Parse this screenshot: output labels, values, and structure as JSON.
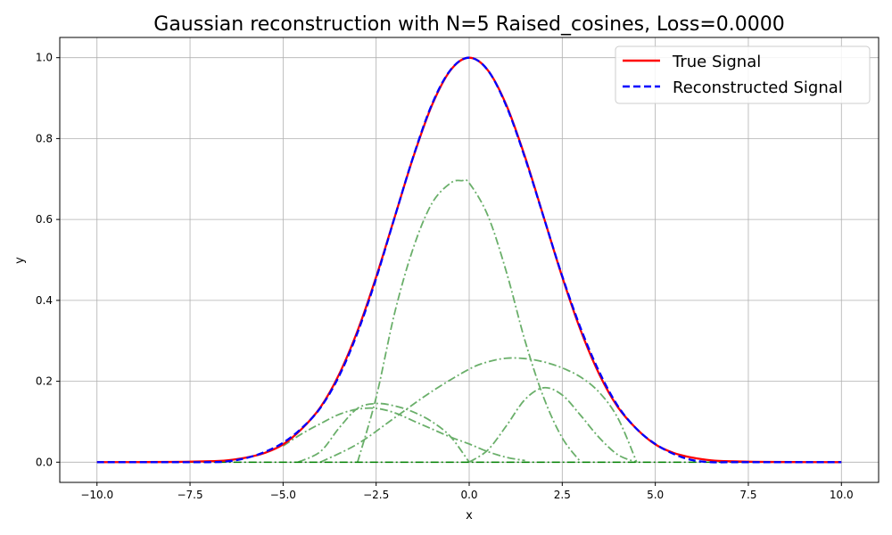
{
  "chart_data": {
    "type": "line",
    "title": "Gaussian reconstruction with N=5 Raised_cosines, Loss=0.0000",
    "xlabel": "x",
    "ylabel": "y",
    "xlim": [
      -11,
      11
    ],
    "ylim": [
      -0.05,
      1.05
    ],
    "xticks": [
      -10.0,
      -7.5,
      -5.0,
      -2.5,
      0.0,
      2.5,
      5.0,
      7.5,
      10.0
    ],
    "xtick_labels": [
      "−10.0",
      "−7.5",
      "−5.0",
      "−2.5",
      "0.0",
      "2.5",
      "5.0",
      "7.5",
      "10.0"
    ],
    "yticks": [
      0.0,
      0.2,
      0.4,
      0.6,
      0.8,
      1.0
    ],
    "ytick_labels": [
      "0.0",
      "0.2",
      "0.4",
      "0.6",
      "0.8",
      "1.0"
    ],
    "grid": true,
    "legend_position": "top-right",
    "series": [
      {
        "name": "True Signal",
        "color": "#ff0000",
        "style": "solid",
        "x": [
          -10,
          -9,
          -8,
          -7,
          -6.5,
          -6,
          -5.5,
          -5,
          -4.5,
          -4,
          -3.5,
          -3,
          -2.5,
          -2,
          -1.5,
          -1,
          -0.5,
          0,
          0.5,
          1,
          1.5,
          2,
          2.5,
          3,
          3.5,
          4,
          4.5,
          5,
          5.5,
          6,
          6.5,
          7,
          8,
          9,
          10
        ],
        "y": [
          0.0,
          0.0002,
          0.0006,
          0.0022,
          0.0046,
          0.0111,
          0.0226,
          0.0439,
          0.0821,
          0.1353,
          0.2163,
          0.3247,
          0.4578,
          0.6065,
          0.7548,
          0.8825,
          0.9692,
          1.0,
          0.9692,
          0.8825,
          0.7548,
          0.6065,
          0.4578,
          0.3247,
          0.2163,
          0.1353,
          0.0821,
          0.0439,
          0.0226,
          0.0111,
          0.0046,
          0.0022,
          0.0006,
          0.0002,
          0.0
        ]
      },
      {
        "name": "Reconstructed Signal",
        "color": "#0000ff",
        "style": "dashed",
        "x": [
          -10,
          -9,
          -8,
          -7,
          -6.5,
          -6,
          -5.5,
          -5,
          -4.5,
          -4,
          -3.5,
          -3,
          -2.5,
          -2,
          -1.5,
          -1,
          -0.5,
          0,
          0.5,
          1,
          1.5,
          2,
          2.5,
          3,
          3.5,
          4,
          4.5,
          5,
          5.5,
          6,
          6.5,
          7,
          8,
          9,
          10
        ],
        "y": [
          0.0,
          0.0,
          0.0,
          0.0,
          0.002,
          0.01,
          0.025,
          0.048,
          0.084,
          0.134,
          0.212,
          0.32,
          0.454,
          0.606,
          0.756,
          0.885,
          0.97,
          1.0,
          0.969,
          0.88,
          0.752,
          0.606,
          0.46,
          0.33,
          0.222,
          0.138,
          0.082,
          0.045,
          0.02,
          0.005,
          0.0,
          0.0,
          0.0,
          0.0,
          0.0
        ]
      }
    ],
    "components": {
      "color": "#6aaf6a",
      "style": "dash-dot",
      "baseline_color": "#008000",
      "items": [
        {
          "x": [
            -5,
            -4.5,
            -4,
            -3.5,
            -3,
            -2.5,
            -2,
            -1.5,
            -1,
            -0.5,
            0,
            0.5,
            1,
            1.5
          ],
          "y": [
            0.04,
            0.07,
            0.095,
            0.118,
            0.131,
            0.133,
            0.122,
            0.102,
            0.082,
            0.062,
            0.045,
            0.026,
            0.012,
            0.004
          ]
        },
        {
          "x": [
            -4.6,
            -4,
            -3.5,
            -3,
            -2.5,
            -2,
            -1.5,
            -1,
            -0.5,
            0
          ],
          "y": [
            0.0,
            0.026,
            0.084,
            0.133,
            0.145,
            0.139,
            0.124,
            0.1,
            0.063,
            0.0
          ]
        },
        {
          "x": [
            -3.0,
            -2.5,
            -2,
            -1.5,
            -1,
            -0.5,
            -0.2,
            0,
            0.5,
            1,
            1.5,
            2,
            2.5,
            3.0
          ],
          "y": [
            0.0,
            0.16,
            0.37,
            0.53,
            0.64,
            0.69,
            0.696,
            0.69,
            0.61,
            0.47,
            0.3,
            0.16,
            0.06,
            0.0
          ]
        },
        {
          "x": [
            -4,
            -3,
            -2,
            -1,
            0,
            0.5,
            1,
            1.5,
            2,
            2.5,
            3,
            3.5,
            4,
            4.5
          ],
          "y": [
            0.0,
            0.045,
            0.11,
            0.175,
            0.23,
            0.248,
            0.257,
            0.256,
            0.248,
            0.233,
            0.21,
            0.172,
            0.108,
            0.0
          ]
        },
        {
          "x": [
            0,
            0.5,
            1,
            1.5,
            2,
            2.5,
            3,
            3.5,
            4,
            4.5
          ],
          "y": [
            0.0,
            0.03,
            0.09,
            0.155,
            0.184,
            0.166,
            0.115,
            0.06,
            0.018,
            0.0
          ]
        }
      ]
    }
  }
}
